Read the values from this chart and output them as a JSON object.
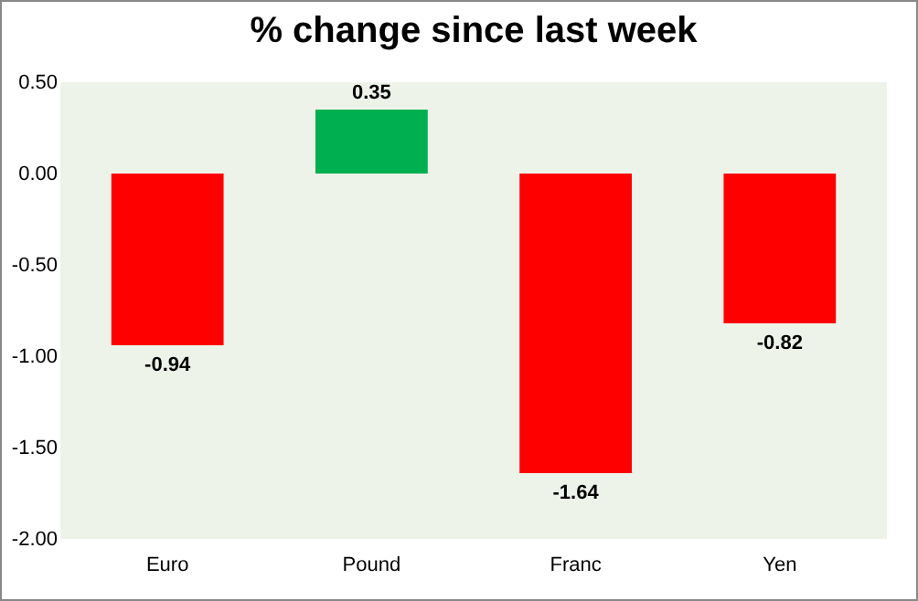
{
  "chart_data": {
    "type": "bar",
    "title": "% change since last week",
    "categories": [
      "Euro",
      "Pound",
      "Franc",
      "Yen"
    ],
    "values": [
      -0.94,
      0.35,
      -1.64,
      -0.82
    ],
    "colors": [
      "#ff0000",
      "#00b050",
      "#ff0000",
      "#ff0000"
    ],
    "ylim": [
      -2,
      0.5
    ],
    "yticks": [
      {
        "value": 0.5,
        "label": "0.50"
      },
      {
        "value": 0,
        "label": "0.00"
      },
      {
        "value": -0.5,
        "label": "-0.50"
      },
      {
        "value": -1,
        "label": "-1.00"
      },
      {
        "value": -1.5,
        "label": "-1.50"
      },
      {
        "value": -2,
        "label": "-2.00"
      }
    ],
    "data_labels": true,
    "grid": false
  }
}
